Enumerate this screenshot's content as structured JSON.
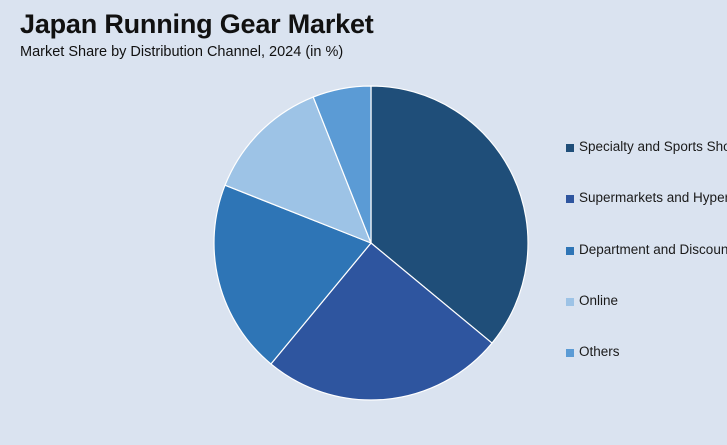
{
  "chart_data": {
    "type": "pie",
    "title": "Japan Running Gear Market",
    "subtitle": "Market Share by Distribution Channel, 2024 (in %)",
    "categories": [
      "Specialty and Sports Shops",
      "Supermarkets and Hypermarkets",
      "Department and Discount Stores",
      "Online",
      "Others"
    ],
    "values": [
      36,
      25,
      20,
      13,
      6
    ],
    "colors": [
      "#1f4e79",
      "#2e559f",
      "#2e75b6",
      "#9dc3e6",
      "#5b9bd5"
    ],
    "legend_position": "right"
  }
}
